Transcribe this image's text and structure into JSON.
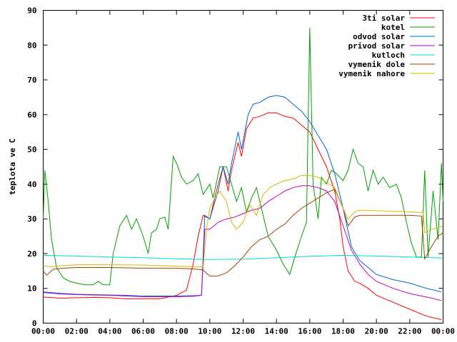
{
  "chart_data": {
    "type": "line",
    "xlabel": "",
    "ylabel": "teplota ve C",
    "x_ticks": [
      "00:00",
      "02:00",
      "04:00",
      "06:00",
      "08:00",
      "10:00",
      "12:00",
      "14:00",
      "16:00",
      "18:00",
      "20:00",
      "22:00",
      "00:00"
    ],
    "y_ticks": [
      "0",
      "10",
      "20",
      "30",
      "40",
      "50",
      "60",
      "70",
      "80",
      "90"
    ],
    "xlim": [
      0,
      24
    ],
    "ylim": [
      0,
      90
    ],
    "grid": false,
    "legend_position": "top-right",
    "series": [
      {
        "name": "3ti solar",
        "color": "#ff0000",
        "points": [
          [
            0,
            7.5
          ],
          [
            1,
            7.2
          ],
          [
            2,
            7.3
          ],
          [
            3,
            7.4
          ],
          [
            4,
            7.3
          ],
          [
            5,
            7.0
          ],
          [
            6,
            7.0
          ],
          [
            7,
            7.0
          ],
          [
            7.5,
            7.5
          ],
          [
            8,
            8
          ],
          [
            8.6,
            9.5
          ],
          [
            9,
            17
          ],
          [
            9.3,
            25
          ],
          [
            9.6,
            31
          ],
          [
            10,
            30
          ],
          [
            10.5,
            40
          ],
          [
            10.8,
            45
          ],
          [
            11.1,
            38
          ],
          [
            11.3,
            44
          ],
          [
            11.7,
            52
          ],
          [
            11.9,
            48
          ],
          [
            12.2,
            56
          ],
          [
            12.6,
            59
          ],
          [
            13,
            59.5
          ],
          [
            13.5,
            60.5
          ],
          [
            14,
            60.5
          ],
          [
            14.5,
            59.5
          ],
          [
            15,
            59
          ],
          [
            15.5,
            57
          ],
          [
            16,
            55
          ],
          [
            16.5,
            50
          ],
          [
            17,
            45
          ],
          [
            17.5,
            38
          ],
          [
            17.8,
            30
          ],
          [
            18,
            22
          ],
          [
            18.3,
            15
          ],
          [
            18.7,
            12
          ],
          [
            19,
            11.5
          ],
          [
            19.5,
            10
          ],
          [
            20,
            8
          ],
          [
            21,
            6
          ],
          [
            22,
            4
          ],
          [
            23,
            2
          ],
          [
            23.9,
            1
          ]
        ]
      },
      {
        "name": "kotel",
        "color": "#00a000",
        "points": [
          [
            0,
            30
          ],
          [
            0.1,
            44
          ],
          [
            0.3,
            35
          ],
          [
            0.5,
            24
          ],
          [
            0.8,
            16
          ],
          [
            1.2,
            13
          ],
          [
            1.6,
            12
          ],
          [
            2,
            11.5
          ],
          [
            2.5,
            11
          ],
          [
            3,
            11
          ],
          [
            3.3,
            12
          ],
          [
            3.6,
            11
          ],
          [
            4,
            11
          ],
          [
            4.2,
            20
          ],
          [
            4.6,
            28
          ],
          [
            5,
            31
          ],
          [
            5.3,
            27
          ],
          [
            5.6,
            30
          ],
          [
            6,
            25
          ],
          [
            6.3,
            20
          ],
          [
            6.5,
            26
          ],
          [
            6.8,
            27
          ],
          [
            7,
            30
          ],
          [
            7.3,
            30.5
          ],
          [
            7.5,
            27
          ],
          [
            7.8,
            48
          ],
          [
            8,
            46
          ],
          [
            8.3,
            42
          ],
          [
            8.6,
            40
          ],
          [
            9,
            41
          ],
          [
            9.3,
            43
          ],
          [
            9.6,
            37
          ],
          [
            10,
            40
          ],
          [
            10.2,
            36
          ],
          [
            10.6,
            45
          ],
          [
            11,
            45
          ],
          [
            11.3,
            40
          ],
          [
            11.6,
            35
          ],
          [
            11.9,
            39
          ],
          [
            12.2,
            32
          ],
          [
            12.5,
            36
          ],
          [
            12.8,
            39
          ],
          [
            13.1,
            33
          ],
          [
            13.5,
            25
          ],
          [
            14,
            21
          ],
          [
            14.4,
            17
          ],
          [
            14.8,
            14
          ],
          [
            15.1,
            19
          ],
          [
            15.5,
            25
          ],
          [
            15.8,
            29
          ],
          [
            16.0,
            85
          ],
          [
            16.2,
            40
          ],
          [
            16.5,
            30
          ],
          [
            16.7,
            42
          ],
          [
            17,
            40
          ],
          [
            17.3,
            44
          ],
          [
            17.6,
            43
          ],
          [
            18,
            41
          ],
          [
            18.3,
            44
          ],
          [
            18.6,
            50
          ],
          [
            18.9,
            46
          ],
          [
            19.2,
            45
          ],
          [
            19.5,
            38
          ],
          [
            19.8,
            44
          ],
          [
            20.1,
            40
          ],
          [
            20.4,
            42
          ],
          [
            20.8,
            39
          ],
          [
            21.2,
            40
          ],
          [
            21.5,
            36
          ],
          [
            21.8,
            29
          ],
          [
            22.1,
            23
          ],
          [
            22.4,
            19
          ],
          [
            22.7,
            19
          ],
          [
            22.9,
            44
          ],
          [
            23.1,
            19
          ],
          [
            23.4,
            38
          ],
          [
            23.7,
            24
          ],
          [
            23.9,
            46
          ],
          [
            24,
            35
          ]
        ]
      },
      {
        "name": "odvod solar",
        "color": "#0060e0",
        "points": [
          [
            0,
            9
          ],
          [
            1,
            8.6
          ],
          [
            2,
            8.3
          ],
          [
            3,
            8.2
          ],
          [
            4,
            8.1
          ],
          [
            5,
            8.0
          ],
          [
            6,
            7.8
          ],
          [
            7,
            7.8
          ],
          [
            8,
            7.8
          ],
          [
            9,
            7.9
          ],
          [
            9.5,
            8
          ],
          [
            9.7,
            31
          ],
          [
            10,
            30
          ],
          [
            10.5,
            38
          ],
          [
            10.8,
            45
          ],
          [
            11.1,
            40
          ],
          [
            11.3,
            46
          ],
          [
            11.7,
            55
          ],
          [
            11.9,
            50
          ],
          [
            12.3,
            60
          ],
          [
            12.6,
            63
          ],
          [
            13,
            63.5
          ],
          [
            13.5,
            65
          ],
          [
            14,
            65.5
          ],
          [
            14.5,
            65
          ],
          [
            15,
            63
          ],
          [
            15.5,
            61
          ],
          [
            16,
            58
          ],
          [
            16.5,
            54
          ],
          [
            17,
            50
          ],
          [
            17.5,
            43
          ],
          [
            18,
            33
          ],
          [
            18.5,
            22
          ],
          [
            19,
            18
          ],
          [
            19.5,
            16
          ],
          [
            20,
            14
          ],
          [
            21,
            12.5
          ],
          [
            22,
            11.5
          ],
          [
            23,
            10
          ],
          [
            23.9,
            9
          ]
        ]
      },
      {
        "name": "privod solar",
        "color": "#c000c0",
        "points": [
          [
            0,
            8.8
          ],
          [
            1,
            8.4
          ],
          [
            2,
            8.2
          ],
          [
            3,
            8.1
          ],
          [
            4,
            8.0
          ],
          [
            5,
            7.8
          ],
          [
            6,
            7.6
          ],
          [
            7,
            7.6
          ],
          [
            8,
            7.6
          ],
          [
            9,
            7.7
          ],
          [
            9.5,
            8
          ],
          [
            9.7,
            27
          ],
          [
            10,
            27
          ],
          [
            10.5,
            29
          ],
          [
            11,
            30
          ],
          [
            11.5,
            30.5
          ],
          [
            12,
            31.5
          ],
          [
            12.5,
            32.5
          ],
          [
            13,
            33
          ],
          [
            13.5,
            35
          ],
          [
            14,
            36.5
          ],
          [
            14.5,
            38
          ],
          [
            15,
            39
          ],
          [
            15.5,
            39.5
          ],
          [
            16,
            39.5
          ],
          [
            16.5,
            39
          ],
          [
            17,
            38
          ],
          [
            17.5,
            35
          ],
          [
            18,
            28
          ],
          [
            18.5,
            21
          ],
          [
            19,
            17
          ],
          [
            19.5,
            14
          ],
          [
            20,
            12
          ],
          [
            21,
            10
          ],
          [
            22,
            8.5
          ],
          [
            23,
            7.5
          ],
          [
            23.9,
            6.5
          ]
        ]
      },
      {
        "name": "kutloch",
        "color": "#00d8d8",
        "points": [
          [
            0,
            19.5
          ],
          [
            2,
            19.3
          ],
          [
            4,
            19.0
          ],
          [
            6,
            18.8
          ],
          [
            8,
            18.5
          ],
          [
            10,
            18.3
          ],
          [
            12,
            18.4
          ],
          [
            14,
            18.8
          ],
          [
            16,
            19.2
          ],
          [
            18,
            19.5
          ],
          [
            20,
            19.3
          ],
          [
            22,
            19.0
          ],
          [
            24,
            18.7
          ]
        ]
      },
      {
        "name": "vymenik dole",
        "color": "#a04000",
        "points": [
          [
            0,
            15
          ],
          [
            0.2,
            13.8
          ],
          [
            0.6,
            15.5
          ],
          [
            1.2,
            15.8
          ],
          [
            2,
            16.0
          ],
          [
            4,
            16.0
          ],
          [
            6,
            15.8
          ],
          [
            8,
            15.8
          ],
          [
            9,
            15.6
          ],
          [
            9.6,
            15.3
          ],
          [
            10,
            13.5
          ],
          [
            10.5,
            13.6
          ],
          [
            11,
            14.5
          ],
          [
            11.5,
            16.5
          ],
          [
            12,
            19
          ],
          [
            12.5,
            22
          ],
          [
            13,
            24
          ],
          [
            13.5,
            25
          ],
          [
            14,
            27
          ],
          [
            14.5,
            28.5
          ],
          [
            15,
            31
          ],
          [
            15.5,
            33
          ],
          [
            16,
            34.5
          ],
          [
            16.5,
            36
          ],
          [
            17,
            37.5
          ],
          [
            17.5,
            38.5
          ],
          [
            18,
            33
          ],
          [
            18.3,
            28
          ],
          [
            18.7,
            30.5
          ],
          [
            19,
            31
          ],
          [
            20,
            31
          ],
          [
            21,
            31
          ],
          [
            22,
            31
          ],
          [
            22.7,
            30.8
          ],
          [
            22.9,
            18.5
          ],
          [
            23.3,
            22
          ],
          [
            23.7,
            25
          ],
          [
            24,
            26
          ]
        ]
      },
      {
        "name": "vymenik nahore",
        "color": "#d8b800",
        "points": [
          [
            0,
            16.5
          ],
          [
            0.5,
            16.2
          ],
          [
            1,
            16.5
          ],
          [
            2,
            16.8
          ],
          [
            4,
            16.8
          ],
          [
            6,
            16.7
          ],
          [
            8,
            16.4
          ],
          [
            9,
            16.2
          ],
          [
            9.6,
            16.2
          ],
          [
            9.8,
            27
          ],
          [
            10,
            33
          ],
          [
            10.3,
            36
          ],
          [
            10.6,
            38
          ],
          [
            11,
            35
          ],
          [
            11.3,
            29
          ],
          [
            11.6,
            27
          ],
          [
            12,
            29
          ],
          [
            12.4,
            34
          ],
          [
            12.8,
            31
          ],
          [
            13.2,
            37
          ],
          [
            13.6,
            39
          ],
          [
            14,
            40
          ],
          [
            14.5,
            41
          ],
          [
            15,
            41.5
          ],
          [
            15.5,
            42.5
          ],
          [
            16,
            42.5
          ],
          [
            16.5,
            42
          ],
          [
            17,
            40.5
          ],
          [
            17.5,
            39
          ],
          [
            18,
            33
          ],
          [
            18.3,
            30
          ],
          [
            18.7,
            32
          ],
          [
            19,
            32.5
          ],
          [
            20,
            32.3
          ],
          [
            21,
            32.2
          ],
          [
            22,
            32.0
          ],
          [
            22.8,
            31.8
          ],
          [
            22.9,
            26
          ],
          [
            23.3,
            27
          ],
          [
            23.7,
            27.5
          ],
          [
            24,
            28
          ]
        ]
      }
    ]
  }
}
